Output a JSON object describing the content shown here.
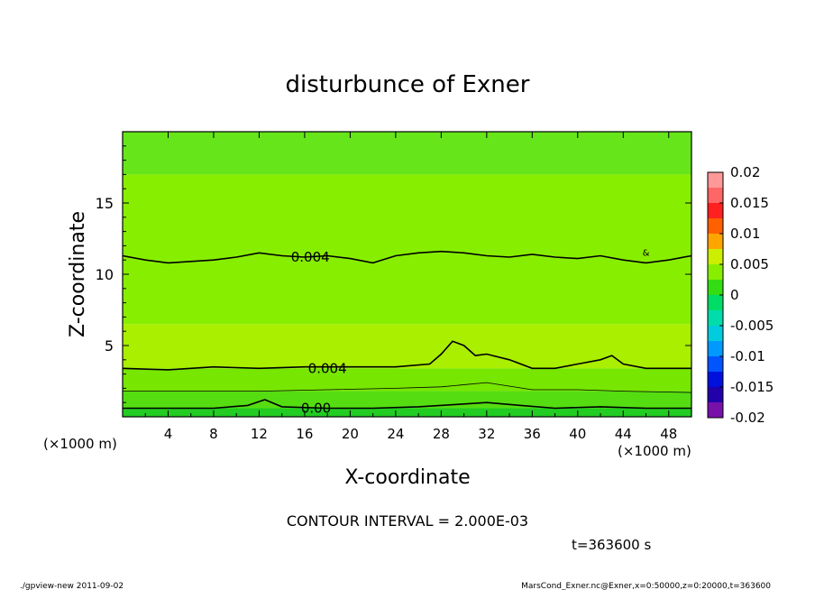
{
  "chart_data": {
    "type": "contour",
    "title": "disturbunce of Exner",
    "xlabel": "X-coordinate",
    "ylabel": "Z-coordinate",
    "x_unit_label": "(×1000 m)",
    "z_unit_label": "(×1000 m)",
    "xlim": [
      0,
      50
    ],
    "ylim": [
      0,
      20
    ],
    "x_ticks": [
      "4",
      "8",
      "12",
      "16",
      "20",
      "24",
      "28",
      "32",
      "36",
      "40",
      "44",
      "48"
    ],
    "x_tick_values": [
      4,
      8,
      12,
      16,
      20,
      24,
      28,
      32,
      36,
      40,
      44,
      48
    ],
    "y_ticks": [
      "5",
      "10",
      "15"
    ],
    "y_tick_values": [
      5,
      10,
      15
    ],
    "contour_interval_text": "CONTOUR INTERVAL = 2.000E-03",
    "time_text": "t=363600 s",
    "contour_labels": [
      {
        "text": "0.004",
        "x": 16.5,
        "z": 11.2
      },
      {
        "text": "0.004",
        "x": 18.0,
        "z": 3.4
      },
      {
        "text": "0.00",
        "x": 17.0,
        "z": 0.6
      },
      {
        "text": "&",
        "x": 46.0,
        "z": 11.6
      }
    ],
    "contours": [
      {
        "level": 0.004,
        "points": [
          [
            0,
            11.3
          ],
          [
            2,
            11.0
          ],
          [
            4,
            10.8
          ],
          [
            6,
            10.9
          ],
          [
            8,
            11.0
          ],
          [
            10,
            11.2
          ],
          [
            12,
            11.5
          ],
          [
            14,
            11.3
          ],
          [
            16,
            11.2
          ],
          [
            18,
            11.3
          ],
          [
            20,
            11.1
          ],
          [
            22,
            10.8
          ],
          [
            24,
            11.3
          ],
          [
            26,
            11.5
          ],
          [
            28,
            11.6
          ],
          [
            30,
            11.5
          ],
          [
            32,
            11.3
          ],
          [
            34,
            11.2
          ],
          [
            36,
            11.4
          ],
          [
            38,
            11.2
          ],
          [
            40,
            11.1
          ],
          [
            42,
            11.3
          ],
          [
            44,
            11.0
          ],
          [
            46,
            10.8
          ],
          [
            48,
            11.0
          ],
          [
            50,
            11.3
          ]
        ]
      },
      {
        "level": 0.004,
        "points": [
          [
            0,
            3.4
          ],
          [
            4,
            3.3
          ],
          [
            8,
            3.5
          ],
          [
            12,
            3.4
          ],
          [
            16,
            3.5
          ],
          [
            20,
            3.5
          ],
          [
            24,
            3.5
          ],
          [
            27,
            3.7
          ],
          [
            28,
            4.4
          ],
          [
            29,
            5.3
          ],
          [
            30,
            5.0
          ],
          [
            31,
            4.3
          ],
          [
            32,
            4.4
          ],
          [
            34,
            4.0
          ],
          [
            36,
            3.4
          ],
          [
            38,
            3.4
          ],
          [
            40,
            3.7
          ],
          [
            42,
            4.0
          ],
          [
            43,
            4.3
          ],
          [
            44,
            3.7
          ],
          [
            46,
            3.4
          ],
          [
            50,
            3.4
          ]
        ]
      },
      {
        "level": 0.002,
        "points": [
          [
            0,
            1.8
          ],
          [
            6,
            1.8
          ],
          [
            12,
            1.8
          ],
          [
            18,
            1.9
          ],
          [
            24,
            2.0
          ],
          [
            28,
            2.1
          ],
          [
            32,
            2.4
          ],
          [
            36,
            1.9
          ],
          [
            40,
            1.9
          ],
          [
            44,
            1.8
          ],
          [
            50,
            1.7
          ]
        ]
      },
      {
        "level": 0.0,
        "points": [
          [
            0,
            0.6
          ],
          [
            4,
            0.6
          ],
          [
            8,
            0.6
          ],
          [
            11,
            0.8
          ],
          [
            12.5,
            1.2
          ],
          [
            14,
            0.7
          ],
          [
            18,
            0.6
          ],
          [
            22,
            0.6
          ],
          [
            26,
            0.7
          ],
          [
            30,
            0.9
          ],
          [
            32,
            1.0
          ],
          [
            35,
            0.8
          ],
          [
            38,
            0.6
          ],
          [
            42,
            0.7
          ],
          [
            46,
            0.6
          ],
          [
            50,
            0.6
          ]
        ]
      }
    ],
    "colorbar": {
      "ticks": [
        "0.02",
        "0.015",
        "0.01",
        "0.005",
        "0",
        "-0.005",
        "-0.01",
        "-0.015",
        "-0.02"
      ],
      "tick_values": [
        0.02,
        0.015,
        0.01,
        0.005,
        0,
        -0.005,
        -0.01,
        -0.015,
        -0.02
      ],
      "bands": [
        {
          "from": 0.0175,
          "to": 0.02,
          "color": "#ff9999"
        },
        {
          "from": 0.015,
          "to": 0.0175,
          "color": "#ff6666"
        },
        {
          "from": 0.0125,
          "to": 0.015,
          "color": "#ff2020"
        },
        {
          "from": 0.01,
          "to": 0.0125,
          "color": "#ff6000"
        },
        {
          "from": 0.0075,
          "to": 0.01,
          "color": "#ffa500"
        },
        {
          "from": 0.005,
          "to": 0.0075,
          "color": "#ccee00"
        },
        {
          "from": 0.0025,
          "to": 0.005,
          "color": "#88ee00"
        },
        {
          "from": 0.0,
          "to": 0.0025,
          "color": "#33dd11"
        },
        {
          "from": -0.0025,
          "to": 0.0,
          "color": "#00dd66"
        },
        {
          "from": -0.005,
          "to": -0.0025,
          "color": "#00ddaa"
        },
        {
          "from": -0.0075,
          "to": -0.005,
          "color": "#00ccdd"
        },
        {
          "from": -0.01,
          "to": -0.0075,
          "color": "#0099ff"
        },
        {
          "from": -0.0125,
          "to": -0.01,
          "color": "#0055ff"
        },
        {
          "from": -0.015,
          "to": -0.0125,
          "color": "#0011dd"
        },
        {
          "from": -0.0175,
          "to": -0.015,
          "color": "#2200aa"
        },
        {
          "from": -0.02,
          "to": -0.0175,
          "color": "#7711aa"
        }
      ]
    },
    "field_bands": [
      {
        "z_from": 0,
        "z_to": 0.6,
        "color": "#22cc22"
      },
      {
        "z_from": 0.6,
        "z_to": 1.8,
        "color": "#55dd11"
      },
      {
        "z_from": 1.8,
        "z_to": 3.4,
        "color": "#77e600"
      },
      {
        "z_from": 3.4,
        "z_to": 6.5,
        "color": "#aaee00"
      },
      {
        "z_from": 6.5,
        "z_to": 17,
        "color": "#88ee00"
      },
      {
        "z_from": 17,
        "z_to": 20,
        "color": "#66e61a"
      }
    ]
  },
  "footer": {
    "left": "./gpview-new   2011-09-02",
    "right": "MarsCond_Exner.nc@Exner,x=0:50000,z=0:20000,t=363600"
  }
}
